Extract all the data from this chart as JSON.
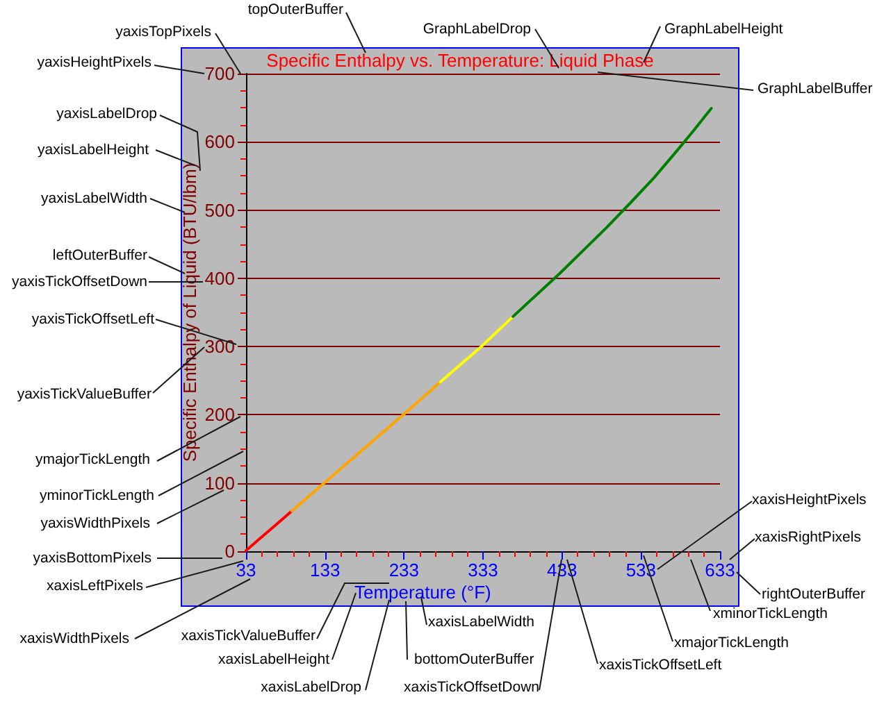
{
  "chart_data": {
    "type": "line",
    "title": "Specific Enthalpy vs. Temperature: Liquid Phase",
    "xlabel": "Temperature (°F)",
    "ylabel": "Specific Enthalpy of Liquid (BTU/lbm)",
    "series": [
      {
        "color": "#ff0000",
        "x": [
          33,
          50,
          70,
          91
        ],
        "values": [
          1,
          18,
          38,
          59
        ]
      },
      {
        "color": "#ffa500",
        "x": [
          91,
          120,
          150,
          180,
          210,
          240,
          279
        ],
        "values": [
          59,
          88,
          118,
          148,
          178,
          208,
          248
        ]
      },
      {
        "color": "#ffff00",
        "x": [
          279,
          300,
          330,
          371
        ],
        "values": [
          248,
          269,
          299,
          344
        ]
      },
      {
        "color": "#008000",
        "x": [
          371,
          400,
          430,
          460,
          490,
          520,
          550,
          580,
          600,
          622
        ],
        "values": [
          344,
          375,
          407,
          441,
          475,
          511,
          548,
          589,
          617,
          649
        ]
      }
    ],
    "xlim": [
      33,
      633
    ],
    "xticks": [
      33,
      {
        "value": 53,
        "label": null
      },
      {
        "value": 73,
        "label": null
      },
      {
        "value": 93,
        "label": null
      },
      {
        "value": 113,
        "label": null
      },
      133,
      {
        "value": 153,
        "label": null
      },
      {
        "value": 173,
        "label": null
      },
      {
        "value": 193,
        "label": null
      },
      {
        "value": 213,
        "label": null
      },
      233,
      {
        "value": 253,
        "label": null
      },
      {
        "value": 273,
        "label": null
      },
      {
        "value": 293,
        "label": null
      },
      {
        "value": 313,
        "label": null
      },
      333,
      {
        "value": 353,
        "label": null
      },
      {
        "value": 373,
        "label": null
      },
      {
        "value": 393,
        "label": null
      },
      {
        "value": 413,
        "label": null
      },
      433,
      {
        "value": 453,
        "label": null
      },
      {
        "value": 473,
        "label": null
      },
      {
        "value": 493,
        "label": null
      },
      {
        "value": 513,
        "label": null
      },
      533,
      {
        "value": 553,
        "label": null
      },
      {
        "value": 573,
        "label": null
      },
      {
        "value": 593,
        "label": null
      },
      {
        "value": 613,
        "label": null
      },
      633
    ],
    "ylim": [
      0,
      700
    ],
    "yticks": [
      0,
      {
        "value": 25,
        "label": null
      },
      {
        "value": 50,
        "label": null
      },
      {
        "value": 75,
        "label": null
      },
      100,
      {
        "value": 125,
        "label": null
      },
      {
        "value": 150,
        "label": null
      },
      {
        "value": 175,
        "label": null
      },
      200,
      {
        "value": 225,
        "label": null
      },
      {
        "value": 250,
        "label": null
      },
      {
        "value": 275,
        "label": null
      },
      300,
      {
        "value": 325,
        "label": null
      },
      {
        "value": 350,
        "label": null
      },
      {
        "value": 375,
        "label": null
      },
      400,
      {
        "value": 425,
        "label": null
      },
      {
        "value": 450,
        "label": null
      },
      {
        "value": 475,
        "label": null
      },
      500,
      {
        "value": 525,
        "label": null
      },
      {
        "value": 550,
        "label": null
      },
      {
        "value": 575,
        "label": null
      },
      600,
      {
        "value": 625,
        "label": null
      },
      {
        "value": 650,
        "label": null
      },
      {
        "value": 675,
        "label": null
      },
      700
    ],
    "grid": "y",
    "marker": "none",
    "line_style": "solid",
    "annotations": [
      "topOuterBuffer",
      "yaxisTopPixels",
      "GraphLabelDrop",
      "GraphLabelHeight",
      "yaxisHeightPixels",
      "GraphLabelBuffer",
      "yaxisLabelDrop",
      "yaxisLabelHeight",
      "yaxisLabelWidth",
      "leftOuterBuffer",
      "yaxisTickOffsetDown",
      "yaxisTickOffsetLeft",
      "yaxisTickValueBuffer",
      "ymajorTickLength",
      "yminorTickLength",
      "xaxisHeightPixels",
      "yaxisWidthPixels",
      "xaxisRightPixels",
      "yaxisBottomPixels",
      "xaxisLeftPixels",
      "rightOuterBuffer",
      "xminorTickLength",
      "xaxisLabelWidth",
      "xaxisTickValueBuffer",
      "xaxisWidthPixels",
      "xmajorTickLength",
      "xaxisLabelHeight",
      "bottomOuterBuffer",
      "xaxisTickOffsetLeft",
      "xaxisLabelDrop",
      "xaxisTickOffsetDown"
    ]
  }
}
